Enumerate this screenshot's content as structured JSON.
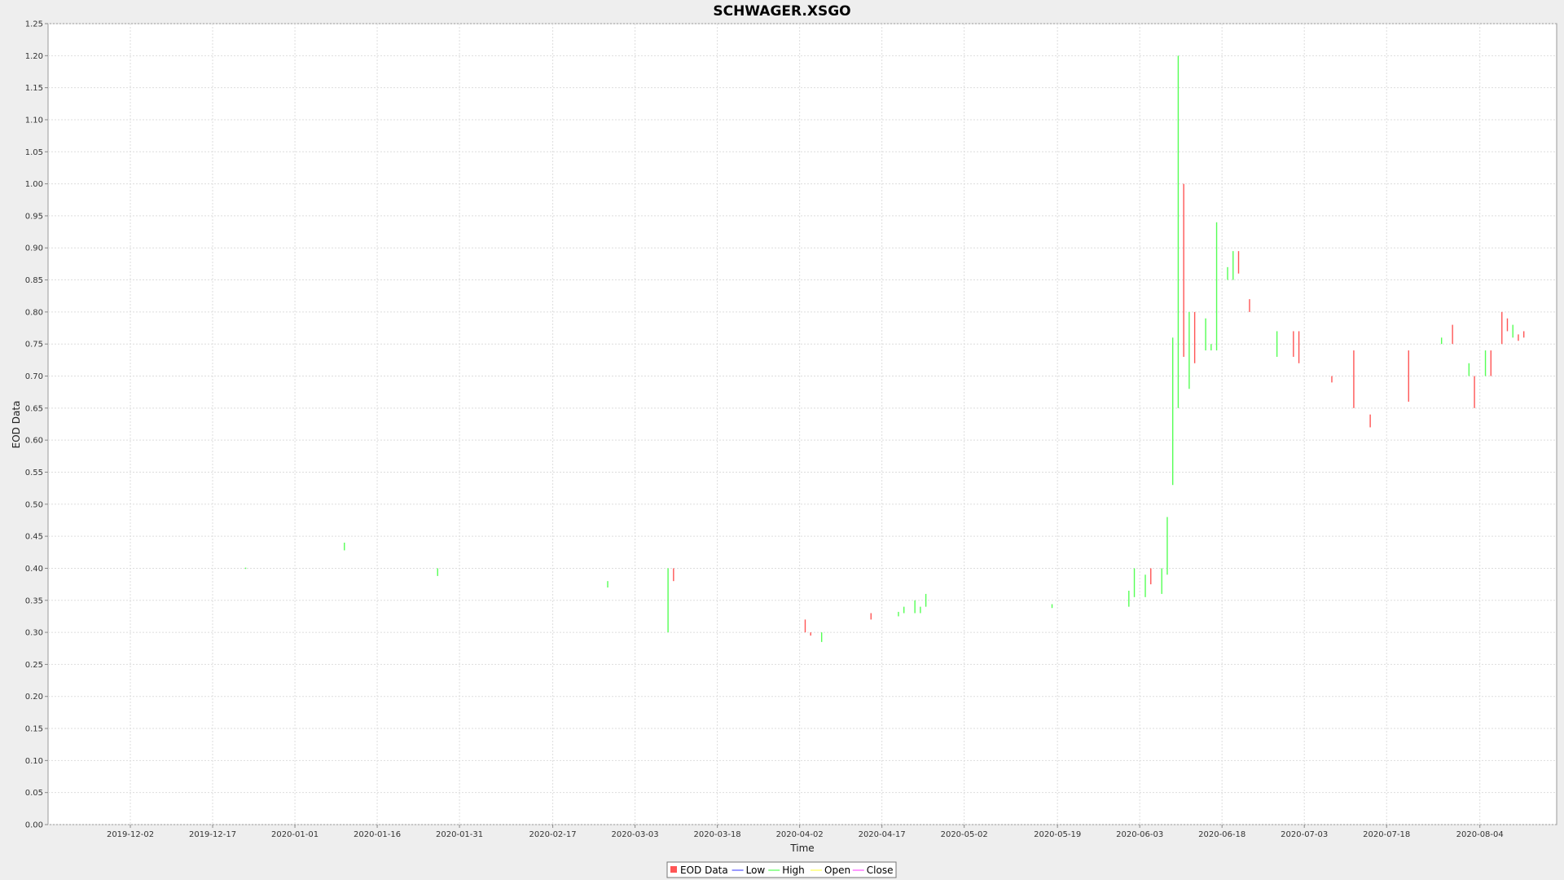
{
  "chart_data": {
    "type": "candlestick",
    "title": "SCHWAGER.XSGO",
    "xlabel": "Time",
    "ylabel": "EOD Data",
    "ylim": [
      0,
      1.25
    ],
    "y_ticks": [
      "0.00",
      "0.05",
      "0.10",
      "0.15",
      "0.20",
      "0.25",
      "0.30",
      "0.35",
      "0.40",
      "0.45",
      "0.50",
      "0.55",
      "0.60",
      "0.65",
      "0.70",
      "0.75",
      "0.80",
      "0.85",
      "0.90",
      "0.95",
      "1.00",
      "1.05",
      "1.10",
      "1.15",
      "1.20",
      "1.25"
    ],
    "x_range": [
      "2019-11-17",
      "2020-08-18"
    ],
    "x_ticks": [
      "2019-12-02",
      "2019-12-17",
      "2020-01-01",
      "2020-01-16",
      "2020-01-31",
      "2020-02-17",
      "2020-03-03",
      "2020-03-18",
      "2020-04-02",
      "2020-04-17",
      "2020-05-02",
      "2020-05-19",
      "2020-06-03",
      "2020-06-18",
      "2020-07-03",
      "2020-07-18",
      "2020-08-04"
    ],
    "grid": true,
    "legend_position": "bottom",
    "legend": [
      {
        "label": "EOD Data",
        "color": "#ff5555",
        "symbol": "square"
      },
      {
        "label": "Low",
        "color": "#5555ff",
        "symbol": "line"
      },
      {
        "label": "High",
        "color": "#55ff55",
        "symbol": "line"
      },
      {
        "label": "Open",
        "color": "#ffff55",
        "symbol": "line"
      },
      {
        "label": "Close",
        "color": "#ff55ff",
        "symbol": "line"
      }
    ],
    "up_color": "#55ff55",
    "down_color": "#ff5555",
    "series": [
      {
        "date": "2019-12-23",
        "low": 0.399,
        "high": 0.401,
        "dir": "up"
      },
      {
        "date": "2020-01-10",
        "low": 0.428,
        "high": 0.44,
        "dir": "up"
      },
      {
        "date": "2020-01-27",
        "low": 0.388,
        "high": 0.4,
        "dir": "up"
      },
      {
        "date": "2020-02-27",
        "low": 0.37,
        "high": 0.38,
        "dir": "up"
      },
      {
        "date": "2020-03-09",
        "low": 0.3,
        "high": 0.4,
        "dir": "up"
      },
      {
        "date": "2020-03-10",
        "low": 0.38,
        "high": 0.4,
        "dir": "down"
      },
      {
        "date": "2020-04-03",
        "low": 0.3,
        "high": 0.32,
        "dir": "down"
      },
      {
        "date": "2020-04-04",
        "low": 0.295,
        "high": 0.3,
        "dir": "down"
      },
      {
        "date": "2020-04-06",
        "low": 0.285,
        "high": 0.3,
        "dir": "up"
      },
      {
        "date": "2020-04-15",
        "low": 0.32,
        "high": 0.33,
        "dir": "down"
      },
      {
        "date": "2020-04-20",
        "low": 0.325,
        "high": 0.332,
        "dir": "up"
      },
      {
        "date": "2020-04-21",
        "low": 0.33,
        "high": 0.34,
        "dir": "up"
      },
      {
        "date": "2020-04-23",
        "low": 0.33,
        "high": 0.35,
        "dir": "up"
      },
      {
        "date": "2020-04-24",
        "low": 0.33,
        "high": 0.34,
        "dir": "up"
      },
      {
        "date": "2020-04-25",
        "low": 0.34,
        "high": 0.36,
        "dir": "up"
      },
      {
        "date": "2020-05-18",
        "low": 0.338,
        "high": 0.344,
        "dir": "up"
      },
      {
        "date": "2020-06-01",
        "low": 0.34,
        "high": 0.365,
        "dir": "up"
      },
      {
        "date": "2020-06-02",
        "low": 0.355,
        "high": 0.4,
        "dir": "up"
      },
      {
        "date": "2020-06-04",
        "low": 0.355,
        "high": 0.39,
        "dir": "up"
      },
      {
        "date": "2020-06-05",
        "low": 0.375,
        "high": 0.4,
        "dir": "down"
      },
      {
        "date": "2020-06-07",
        "low": 0.36,
        "high": 0.4,
        "dir": "up"
      },
      {
        "date": "2020-06-08",
        "low": 0.39,
        "high": 0.48,
        "dir": "up"
      },
      {
        "date": "2020-06-09",
        "low": 0.53,
        "high": 0.76,
        "dir": "up"
      },
      {
        "date": "2020-06-10",
        "low": 0.65,
        "high": 1.2,
        "dir": "up"
      },
      {
        "date": "2020-06-11",
        "low": 0.73,
        "high": 1.0,
        "dir": "down"
      },
      {
        "date": "2020-06-12",
        "low": 0.68,
        "high": 0.8,
        "dir": "up"
      },
      {
        "date": "2020-06-13",
        "low": 0.72,
        "high": 0.8,
        "dir": "down"
      },
      {
        "date": "2020-06-15",
        "low": 0.74,
        "high": 0.79,
        "dir": "up"
      },
      {
        "date": "2020-06-16",
        "low": 0.74,
        "high": 0.75,
        "dir": "up"
      },
      {
        "date": "2020-06-17",
        "low": 0.74,
        "high": 0.94,
        "dir": "up"
      },
      {
        "date": "2020-06-19",
        "low": 0.85,
        "high": 0.87,
        "dir": "up"
      },
      {
        "date": "2020-06-20",
        "low": 0.85,
        "high": 0.895,
        "dir": "up"
      },
      {
        "date": "2020-06-21",
        "low": 0.86,
        "high": 0.895,
        "dir": "down"
      },
      {
        "date": "2020-06-23",
        "low": 0.8,
        "high": 0.82,
        "dir": "down"
      },
      {
        "date": "2020-06-28",
        "low": 0.73,
        "high": 0.77,
        "dir": "up"
      },
      {
        "date": "2020-07-01",
        "low": 0.73,
        "high": 0.77,
        "dir": "down"
      },
      {
        "date": "2020-07-02",
        "low": 0.72,
        "high": 0.77,
        "dir": "down"
      },
      {
        "date": "2020-07-08",
        "low": 0.69,
        "high": 0.7,
        "dir": "down"
      },
      {
        "date": "2020-07-12",
        "low": 0.65,
        "high": 0.74,
        "dir": "down"
      },
      {
        "date": "2020-07-15",
        "low": 0.62,
        "high": 0.64,
        "dir": "down"
      },
      {
        "date": "2020-07-22",
        "low": 0.66,
        "high": 0.74,
        "dir": "down"
      },
      {
        "date": "2020-07-28",
        "low": 0.75,
        "high": 0.76,
        "dir": "up"
      },
      {
        "date": "2020-07-30",
        "low": 0.75,
        "high": 0.78,
        "dir": "down"
      },
      {
        "date": "2020-08-02",
        "low": 0.7,
        "high": 0.72,
        "dir": "up"
      },
      {
        "date": "2020-08-03",
        "low": 0.65,
        "high": 0.7,
        "dir": "down"
      },
      {
        "date": "2020-08-05",
        "low": 0.7,
        "high": 0.74,
        "dir": "up"
      },
      {
        "date": "2020-08-06",
        "low": 0.7,
        "high": 0.74,
        "dir": "down"
      },
      {
        "date": "2020-08-08",
        "low": 0.75,
        "high": 0.8,
        "dir": "down"
      },
      {
        "date": "2020-08-09",
        "low": 0.77,
        "high": 0.79,
        "dir": "down"
      },
      {
        "date": "2020-08-10",
        "low": 0.76,
        "high": 0.78,
        "dir": "up"
      },
      {
        "date": "2020-08-11",
        "low": 0.755,
        "high": 0.765,
        "dir": "down"
      },
      {
        "date": "2020-08-12",
        "low": 0.76,
        "high": 0.77,
        "dir": "down"
      }
    ]
  }
}
